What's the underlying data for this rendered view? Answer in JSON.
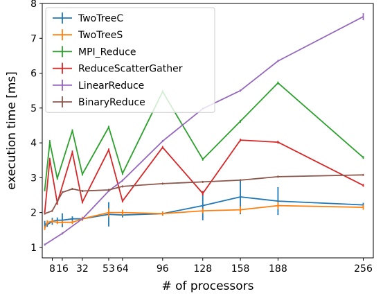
{
  "chart_data": {
    "type": "line",
    "title": "",
    "xlabel": "# of processors",
    "ylabel": "execution time [ms]",
    "xlim": [
      0,
      264
    ],
    "ylim": [
      0.7,
      8
    ],
    "xticks": [
      8,
      16,
      32,
      53,
      64,
      96,
      128,
      158,
      188,
      256
    ],
    "yticks": [
      1,
      2,
      3,
      4,
      5,
      6,
      7,
      8
    ],
    "grid": false,
    "legend": "top-left",
    "error_bars": true,
    "series": [
      {
        "name": "TwoTreeC",
        "color": "#1f77b4",
        "points": [
          {
            "x": 2,
            "y": 1.68,
            "err": 0.08
          },
          {
            "x": 4,
            "y": 1.65,
            "err": 0.06
          },
          {
            "x": 8,
            "y": 1.75,
            "err": 0.1
          },
          {
            "x": 12,
            "y": 1.78,
            "err": 0.08
          },
          {
            "x": 16,
            "y": 1.78,
            "err": 0.2
          },
          {
            "x": 24,
            "y": 1.82,
            "err": 0.07
          },
          {
            "x": 32,
            "y": 1.82,
            "err": 0.05
          },
          {
            "x": 53,
            "y": 1.95,
            "err": 0.35
          },
          {
            "x": 64,
            "y": 1.93,
            "err": 0.07
          },
          {
            "x": 96,
            "y": 1.97,
            "err": 0.06
          },
          {
            "x": 128,
            "y": 2.2,
            "err": 0.42
          },
          {
            "x": 158,
            "y": 2.45,
            "err": 0.5
          },
          {
            "x": 188,
            "y": 2.33,
            "err": 0.4
          },
          {
            "x": 256,
            "y": 2.22,
            "err": 0.06
          }
        ]
      },
      {
        "name": "TwoTreeS",
        "color": "#ff7f0e",
        "points": [
          {
            "x": 2,
            "y": 1.55,
            "err": 0.05
          },
          {
            "x": 4,
            "y": 1.72,
            "err": 0.06
          },
          {
            "x": 8,
            "y": 1.75,
            "err": 0.05
          },
          {
            "x": 12,
            "y": 1.72,
            "err": 0.05
          },
          {
            "x": 16,
            "y": 1.72,
            "err": 0.05
          },
          {
            "x": 24,
            "y": 1.72,
            "err": 0.05
          },
          {
            "x": 32,
            "y": 1.82,
            "err": 0.06
          },
          {
            "x": 53,
            "y": 2.0,
            "err": 0.12
          },
          {
            "x": 64,
            "y": 2.0,
            "err": 0.08
          },
          {
            "x": 96,
            "y": 1.97,
            "err": 0.05
          },
          {
            "x": 128,
            "y": 2.05,
            "err": 0.07
          },
          {
            "x": 158,
            "y": 2.08,
            "err": 0.1
          },
          {
            "x": 188,
            "y": 2.2,
            "err": 0.1
          },
          {
            "x": 256,
            "y": 2.15,
            "err": 0.07
          }
        ]
      },
      {
        "name": "MPI_Reduce",
        "color": "#2ca02c",
        "points": [
          {
            "x": 2,
            "y": 2.65,
            "err": 0.04
          },
          {
            "x": 6,
            "y": 4.02,
            "err": 0.06
          },
          {
            "x": 12,
            "y": 2.98,
            "err": 0.04
          },
          {
            "x": 24,
            "y": 4.35,
            "err": 0.04
          },
          {
            "x": 32,
            "y": 3.1,
            "err": 0.04
          },
          {
            "x": 53,
            "y": 4.45,
            "err": 0.04
          },
          {
            "x": 64,
            "y": 3.12,
            "err": 0.04
          },
          {
            "x": 96,
            "y": 5.47,
            "err": 0.04
          },
          {
            "x": 128,
            "y": 3.53,
            "err": 0.04
          },
          {
            "x": 158,
            "y": 4.62,
            "err": 0.04
          },
          {
            "x": 188,
            "y": 5.72,
            "err": 0.04
          },
          {
            "x": 256,
            "y": 3.58,
            "err": 0.04
          }
        ]
      },
      {
        "name": "ReduceScatterGather",
        "color": "#d62728",
        "points": [
          {
            "x": 2,
            "y": 2.0,
            "err": 0.04
          },
          {
            "x": 6,
            "y": 3.52,
            "err": 0.05
          },
          {
            "x": 12,
            "y": 2.28,
            "err": 0.06
          },
          {
            "x": 24,
            "y": 3.73,
            "err": 0.05
          },
          {
            "x": 32,
            "y": 2.3,
            "err": 0.04
          },
          {
            "x": 53,
            "y": 3.8,
            "err": 0.04
          },
          {
            "x": 64,
            "y": 2.33,
            "err": 0.04
          },
          {
            "x": 96,
            "y": 3.87,
            "err": 0.04
          },
          {
            "x": 128,
            "y": 2.55,
            "err": 0.06
          },
          {
            "x": 158,
            "y": 4.08,
            "err": 0.04
          },
          {
            "x": 188,
            "y": 4.02,
            "err": 0.04
          },
          {
            "x": 256,
            "y": 2.78,
            "err": 0.04
          }
        ]
      },
      {
        "name": "LinearReduce",
        "color": "#9467bd",
        "points": [
          {
            "x": 2,
            "y": 1.08,
            "err": 0.03
          },
          {
            "x": 16,
            "y": 1.4,
            "err": 0.03
          },
          {
            "x": 32,
            "y": 1.82,
            "err": 0.03
          },
          {
            "x": 53,
            "y": 2.62,
            "err": 0.03
          },
          {
            "x": 64,
            "y": 2.92,
            "err": 0.03
          },
          {
            "x": 96,
            "y": 4.05,
            "err": 0.03
          },
          {
            "x": 128,
            "y": 4.98,
            "err": 0.03
          },
          {
            "x": 158,
            "y": 5.5,
            "err": 0.03
          },
          {
            "x": 188,
            "y": 6.35,
            "err": 0.03
          },
          {
            "x": 256,
            "y": 7.62,
            "err": 0.1
          }
        ]
      },
      {
        "name": "BinaryReduce",
        "color": "#8c564b",
        "points": [
          {
            "x": 2,
            "y": 1.97,
            "err": 0.03
          },
          {
            "x": 8,
            "y": 2.05,
            "err": 0.03
          },
          {
            "x": 16,
            "y": 2.58,
            "err": 0.03
          },
          {
            "x": 24,
            "y": 2.68,
            "err": 0.03
          },
          {
            "x": 32,
            "y": 2.62,
            "err": 0.03
          },
          {
            "x": 53,
            "y": 2.65,
            "err": 0.03
          },
          {
            "x": 64,
            "y": 2.75,
            "err": 0.03
          },
          {
            "x": 96,
            "y": 2.83,
            "err": 0.03
          },
          {
            "x": 128,
            "y": 2.88,
            "err": 0.03
          },
          {
            "x": 158,
            "y": 2.93,
            "err": 0.03
          },
          {
            "x": 188,
            "y": 3.03,
            "err": 0.03
          },
          {
            "x": 256,
            "y": 3.08,
            "err": 0.03
          }
        ]
      }
    ]
  }
}
